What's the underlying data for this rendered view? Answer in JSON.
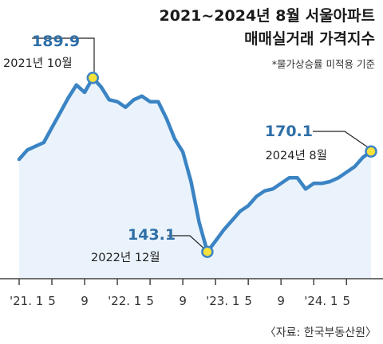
{
  "header": {
    "title_line1": "2021~2024년 8월 서울아파트",
    "title_line2": "매매실거래 가격지수",
    "note": "*물가상승률 미적용 기준"
  },
  "source": "〈자료: 한국부동산원〉",
  "colors": {
    "line": "#3b84c4",
    "area": "#eaf3fb",
    "marker_fill": "#f7e13b",
    "marker_stroke": "#3b84c4",
    "value_text": "#2e6fa8"
  },
  "annotations": [
    {
      "value": "189.9",
      "date": "2021년 10월"
    },
    {
      "value": "143.1",
      "date": "2022년 12월"
    },
    {
      "value": "170.1",
      "date": "2024년 8월"
    }
  ],
  "chart_data": {
    "type": "area",
    "title": "2021~2024년 8월 서울아파트 매매실거래 가격지수",
    "subtitle": "*물가상승률 미적용 기준",
    "xlabel": "",
    "ylabel": "",
    "x": [
      "2021-01",
      "2021-02",
      "2021-03",
      "2021-04",
      "2021-05",
      "2021-06",
      "2021-07",
      "2021-08",
      "2021-09",
      "2021-10",
      "2021-11",
      "2021-12",
      "2022-01",
      "2022-02",
      "2022-03",
      "2022-04",
      "2022-05",
      "2022-06",
      "2022-07",
      "2022-08",
      "2022-09",
      "2022-10",
      "2022-11",
      "2022-12",
      "2023-01",
      "2023-02",
      "2023-03",
      "2023-04",
      "2023-05",
      "2023-06",
      "2023-07",
      "2023-08",
      "2023-09",
      "2023-10",
      "2023-11",
      "2023-12",
      "2024-01",
      "2024-02",
      "2024-03",
      "2024-04",
      "2024-05",
      "2024-06",
      "2024-07",
      "2024-08"
    ],
    "values": [
      168.0,
      170.5,
      171.5,
      172.5,
      176.5,
      180.5,
      184.5,
      188.0,
      186.0,
      189.9,
      187.5,
      184.0,
      183.5,
      182.0,
      184.0,
      185.0,
      183.5,
      183.5,
      179.0,
      173.5,
      170.0,
      162.0,
      151.0,
      143.1,
      146.0,
      149.0,
      151.5,
      154.0,
      155.5,
      158.0,
      159.5,
      160.0,
      161.5,
      163.0,
      163.0,
      160.0,
      161.5,
      161.5,
      162.0,
      163.0,
      164.5,
      166.0,
      168.5,
      170.1
    ],
    "ylim": [
      138,
      198
    ],
    "xticks": [
      {
        "label": "'21. 1",
        "x": "2021-01"
      },
      {
        "label": "5",
        "x": "2021-05"
      },
      {
        "label": "9",
        "x": "2021-09"
      },
      {
        "label": "'22. 1",
        "x": "2022-01"
      },
      {
        "label": "5",
        "x": "2022-05"
      },
      {
        "label": "9",
        "x": "2022-09"
      },
      {
        "label": "'23. 1",
        "x": "2023-01"
      },
      {
        "label": "5",
        "x": "2023-05"
      },
      {
        "label": "9",
        "x": "2023-09"
      },
      {
        "label": "'24. 1",
        "x": "2024-01"
      },
      {
        "label": "5",
        "x": "2024-05"
      }
    ],
    "highlights": [
      {
        "x": "2021-10",
        "y": 189.9,
        "label": "189.9",
        "note": "2021년 10월"
      },
      {
        "x": "2022-12",
        "y": 143.1,
        "label": "143.1",
        "note": "2022년 12월"
      },
      {
        "x": "2024-08",
        "y": 170.1,
        "label": "170.1",
        "note": "2024년 8월"
      }
    ],
    "grid": false,
    "legend": "none"
  }
}
